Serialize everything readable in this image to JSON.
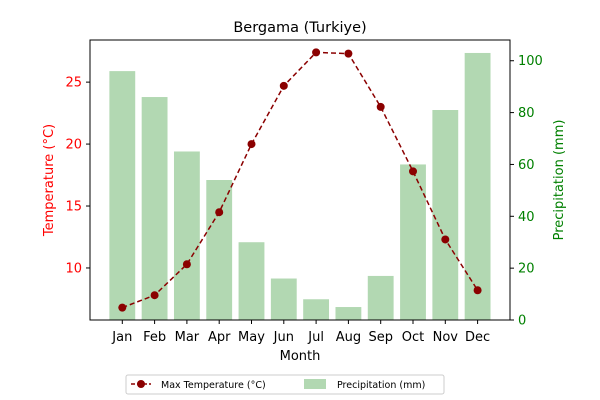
{
  "chart_data": {
    "type": "bar+line",
    "title": "Bergama (Turkiye)",
    "xlabel": "Month",
    "ylabel_left": "Temperature (°C)",
    "ylabel_right": "Precipitation (mm)",
    "categories": [
      "Jan",
      "Feb",
      "Mar",
      "Apr",
      "May",
      "Jun",
      "Jul",
      "Aug",
      "Sep",
      "Oct",
      "Nov",
      "Dec"
    ],
    "temperature": {
      "name": "Max Temperature (°C)",
      "values": [
        6.8,
        7.8,
        10.3,
        14.5,
        20.0,
        24.7,
        27.4,
        27.3,
        23.0,
        17.8,
        12.3,
        8.2
      ],
      "ylim": [
        5.8,
        28.4
      ],
      "yticks": [
        10,
        15,
        20,
        25
      ],
      "color": "#8b0000",
      "style": "dashed line with circle markers"
    },
    "precipitation": {
      "name": "Precipitation (mm)",
      "values": [
        96,
        86,
        65,
        54,
        30,
        16,
        8,
        5,
        17,
        60,
        81,
        103
      ],
      "ylim": [
        0,
        108
      ],
      "yticks": [
        0,
        20,
        40,
        60,
        80,
        100
      ],
      "color": "#b2d8b2"
    },
    "left_axis_color": "#ff0000",
    "right_axis_color": "#008000",
    "legend_placement": "bottom-center, below plot"
  }
}
